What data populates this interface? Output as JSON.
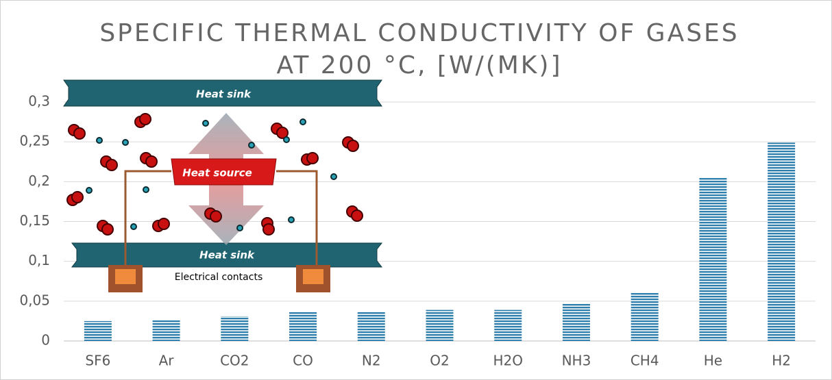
{
  "chart_data": {
    "type": "bar",
    "title": [
      "SPECIFIC THERMAL CONDUCTIVITY OF GASES",
      "AT 200 °C, [W/(MK)]"
    ],
    "annotations": [
      "Heat sink",
      "Heat source",
      "Heat sink",
      "Electrical contacts"
    ],
    "categories": [
      "SF6",
      "Ar",
      "CO2",
      "CO",
      "N2",
      "O2",
      "H2O",
      "NH3",
      "CH4",
      "He",
      "H2"
    ],
    "values": [
      0.025,
      0.026,
      0.031,
      0.037,
      0.037,
      0.039,
      0.039,
      0.047,
      0.061,
      0.205,
      0.249
    ],
    "color": "#2f7fae",
    "ylim": [
      0,
      0.3
    ],
    "yticks": [
      0,
      {
        "value": 0.05,
        "label": "0,05"
      },
      {
        "value": 0.1,
        "label": "0,1"
      },
      {
        "value": 0.15,
        "label": "0,15"
      },
      {
        "value": 0.2,
        "label": "0,2"
      },
      {
        "value": 0.25,
        "label": "0,25"
      },
      {
        "value": 0.3,
        "label": "0,3"
      }
    ],
    "grid": true
  }
}
